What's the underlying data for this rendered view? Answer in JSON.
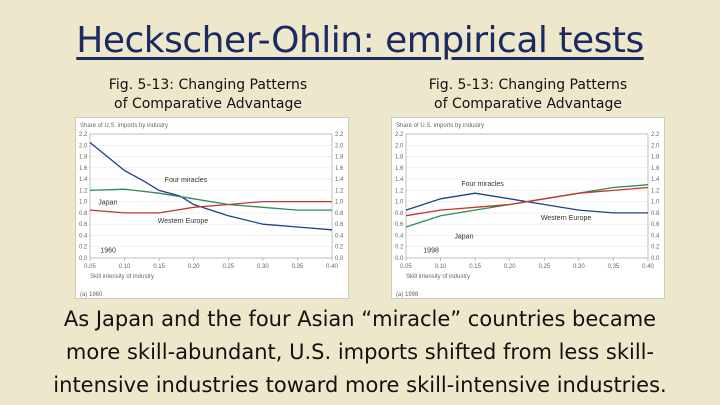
{
  "slide": {
    "title": "Heckscher-Ohlin: empirical tests",
    "captions": [
      {
        "line1": "Fig. 5-13:  Changing Patterns",
        "line2": "of Comparative Advantage"
      },
      {
        "line1": "Fig. 5-13:  Changing Patterns",
        "line2": "of Comparative Advantage"
      }
    ],
    "body": [
      "As Japan and the four Asian “miracle” countries became",
      "more skill-abundant, U.S. imports shifted from less skill-",
      "intensive industries toward more skill-intensive industries."
    ]
  },
  "chart_data": [
    {
      "type": "line",
      "ylabel": "Share of U.S. imports by industry",
      "xlabel": "Skill intensity of industry",
      "year_label": "1960",
      "panel_label": "(a) 1960",
      "xlim": [
        0.05,
        0.4
      ],
      "ylim": [
        0.0,
        2.2
      ],
      "x_ticks": [
        "0.05",
        "0.10",
        "0.15",
        "0.20",
        "0.25",
        "0.30",
        "0.35",
        "0.40"
      ],
      "y_ticks": [
        "0.0",
        "0.2",
        "0.4",
        "0.6",
        "0.8",
        "1.0",
        "1.2",
        "1.4",
        "1.6",
        "1.8",
        "2.0",
        "2.2"
      ],
      "colors": {
        "four_miracles": "#1f3f8a",
        "japan": "#2e8b57",
        "western_europe": "#c0392b"
      },
      "series": [
        {
          "name": "Four miracles",
          "x": [
            0.05,
            0.07,
            0.1,
            0.13,
            0.15,
            0.18,
            0.2,
            0.25,
            0.3,
            0.35,
            0.4
          ],
          "values": [
            2.05,
            1.85,
            1.55,
            1.35,
            1.2,
            1.1,
            0.95,
            0.75,
            0.6,
            0.55,
            0.5
          ]
        },
        {
          "name": "Japan",
          "x": [
            0.05,
            0.1,
            0.15,
            0.2,
            0.25,
            0.3,
            0.35,
            0.4
          ],
          "values": [
            1.2,
            1.22,
            1.15,
            1.05,
            0.95,
            0.9,
            0.85,
            0.85
          ]
        },
        {
          "name": "Western Europe",
          "x": [
            0.05,
            0.1,
            0.15,
            0.2,
            0.25,
            0.3,
            0.35,
            0.4
          ],
          "values": [
            0.85,
            0.8,
            0.8,
            0.9,
            0.95,
            1.0,
            1.0,
            1.0
          ]
        }
      ]
    },
    {
      "type": "line",
      "ylabel": "Share of U.S. imports by industry",
      "xlabel": "Skill intensity of industry",
      "year_label": "1998",
      "panel_label": "(a) 1998",
      "xlim": [
        0.05,
        0.4
      ],
      "ylim": [
        0.0,
        2.2
      ],
      "x_ticks": [
        "0.05",
        "0.10",
        "0.15",
        "0.20",
        "0.25",
        "0.30",
        "0.35",
        "0.40"
      ],
      "y_ticks": [
        "0.0",
        "0.2",
        "0.4",
        "0.6",
        "0.8",
        "1.0",
        "1.2",
        "1.4",
        "1.6",
        "1.8",
        "2.0",
        "2.2"
      ],
      "colors": {
        "four_miracles": "#1f3f8a",
        "japan": "#2e8b57",
        "western_europe": "#c0392b"
      },
      "series": [
        {
          "name": "Four miracles",
          "x": [
            0.05,
            0.1,
            0.15,
            0.2,
            0.25,
            0.3,
            0.35,
            0.4
          ],
          "values": [
            0.85,
            1.05,
            1.15,
            1.05,
            0.95,
            0.85,
            0.8,
            0.8
          ]
        },
        {
          "name": "Japan",
          "x": [
            0.05,
            0.1,
            0.15,
            0.2,
            0.25,
            0.3,
            0.35,
            0.4
          ],
          "values": [
            0.55,
            0.75,
            0.85,
            0.95,
            1.05,
            1.15,
            1.25,
            1.3
          ]
        },
        {
          "name": "Western Europe",
          "x": [
            0.05,
            0.1,
            0.15,
            0.2,
            0.25,
            0.3,
            0.35,
            0.4
          ],
          "values": [
            0.75,
            0.85,
            0.9,
            0.95,
            1.05,
            1.15,
            1.2,
            1.25
          ]
        }
      ]
    }
  ]
}
